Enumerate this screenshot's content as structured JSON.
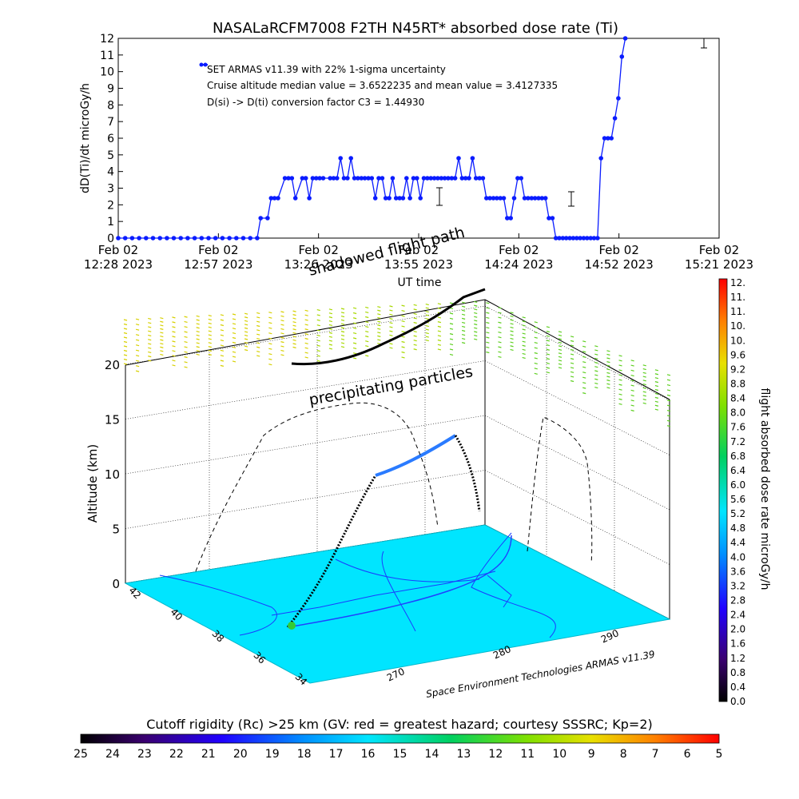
{
  "title": "NASALaRCFM7008  F2TH N45RT* absorbed dose rate (Ti)",
  "colors": {
    "series": "#0a1cff",
    "grid_line": "#000000",
    "ground": "#00e5ff",
    "shadow_path": "#000000"
  },
  "chart_data": [
    {
      "type": "line",
      "title": "NASALaRCFM7008  F2TH N45RT* absorbed dose rate (Ti)",
      "ylabel": "dD(Ti)/dt microGy/h",
      "xlabel": "UT time",
      "ylim": [
        0,
        12
      ],
      "y_ticks": [
        0,
        1,
        2,
        3,
        4,
        5,
        6,
        7,
        8,
        9,
        10,
        11,
        12
      ],
      "x_ticks": [
        {
          "line1": "Feb 02",
          "line2": "12:28 2023"
        },
        {
          "line1": "Feb 02",
          "line2": "12:57 2023"
        },
        {
          "line1": "Feb 02",
          "line2": "13:26 2023"
        },
        {
          "line1": "Feb 02",
          "line2": "13:55 2023"
        },
        {
          "line1": "Feb 02",
          "line2": "14:24 2023"
        },
        {
          "line1": "Feb 02",
          "line2": "14:52 2023"
        },
        {
          "line1": "Feb 02",
          "line2": "15:21 2023"
        }
      ],
      "x_minutes": [
        0,
        2,
        4,
        6,
        8,
        10,
        12,
        14,
        16,
        18,
        20,
        22,
        24,
        26,
        28,
        30,
        32,
        34,
        36,
        38,
        40,
        41,
        43,
        44,
        45,
        46,
        48,
        49,
        50,
        51,
        53,
        54,
        55,
        56,
        57,
        58,
        59,
        61,
        62,
        63,
        64,
        65,
        66,
        67,
        68,
        69,
        70,
        71,
        72,
        73,
        74,
        75,
        76,
        77,
        78,
        79,
        80,
        81,
        82,
        83,
        84,
        85,
        86,
        87,
        88,
        89,
        90,
        91,
        92,
        93,
        94,
        95,
        96,
        97,
        98,
        99,
        100,
        101,
        102,
        103,
        104,
        105,
        106,
        107,
        108,
        109,
        110,
        111,
        112,
        113,
        114,
        115,
        116,
        117,
        118,
        119,
        120,
        121,
        122,
        123,
        124,
        125,
        126,
        127,
        128,
        129,
        130,
        131,
        132,
        133,
        134,
        135,
        136,
        137,
        138,
        139,
        140,
        141,
        142,
        143,
        144,
        145,
        146,
        148,
        150,
        152,
        154,
        155,
        156,
        157,
        158,
        159,
        160,
        161,
        162
      ],
      "series": [
        {
          "values": [
            0,
            0,
            0,
            0,
            0,
            0,
            0,
            0,
            0,
            0,
            0,
            0,
            0,
            0,
            0,
            0,
            0,
            0,
            0,
            0,
            0,
            1.2,
            1.2,
            2.4,
            2.4,
            2.4,
            3.6,
            3.6,
            3.6,
            2.4,
            3.6,
            3.6,
            2.4,
            3.6,
            3.6,
            3.6,
            3.6,
            3.6,
            3.6,
            3.6,
            4.8,
            3.6,
            3.6,
            4.8,
            3.6,
            3.6,
            3.6,
            3.6,
            3.6,
            3.6,
            2.4,
            3.6,
            3.6,
            2.4,
            2.4,
            3.6,
            2.4,
            2.4,
            2.4,
            3.6,
            2.4,
            3.6,
            3.6,
            2.4,
            3.6,
            3.6,
            3.6,
            3.6,
            3.6,
            3.6,
            3.6,
            3.6,
            3.6,
            3.6,
            4.8,
            3.6,
            3.6,
            3.6,
            4.8,
            3.6,
            3.6,
            3.6,
            2.4,
            2.4,
            2.4,
            2.4,
            2.4,
            2.4,
            1.2,
            1.2,
            2.4,
            3.6,
            3.6,
            2.4,
            2.4,
            2.4,
            2.4,
            2.4,
            2.4,
            2.4,
            1.2,
            1.2,
            0,
            0,
            0,
            0,
            0,
            0,
            0,
            0,
            0,
            0,
            0,
            0,
            0,
            4.8,
            6.0,
            6.0,
            6.0,
            7.2,
            8.4,
            10.9,
            12.5
          ]
        }
      ],
      "legend": [
        "SET ARMAS v11.39 with 22% 1-sigma uncertainty",
        "Cruise altitude median value = 3.6522235 and mean value = 3.4127335",
        "D(si) -> D(ti) conversion factor C3 = 1.44930"
      ]
    },
    {
      "type": "scatter",
      "zlabel": "Altitude (km)",
      "z_ticks": [
        "0",
        "5",
        "10",
        "15",
        "20"
      ],
      "lat_ticks": [
        "34",
        "36",
        "38",
        "40",
        "42"
      ],
      "lon_ticks": [
        "270",
        "280",
        "290"
      ],
      "annotations": [
        "shadowed flight path",
        "precipitating particles"
      ],
      "credit": "Space Environment Technologies ARMAS v11.39"
    }
  ],
  "colorbars": {
    "right": {
      "label": "flight absorbed dose rate microGy/h",
      "ticks": [
        "12.",
        "11.",
        "11.",
        "10.",
        "10.",
        "9.6",
        "9.2",
        "8.8",
        "8.4",
        "8.0",
        "7.6",
        "7.2",
        "6.8",
        "6.4",
        "6.0",
        "5.6",
        "5.2",
        "4.8",
        "4.4",
        "4.0",
        "3.6",
        "3.2",
        "2.8",
        "2.4",
        "2.0",
        "1.6",
        "1.2",
        "0.8",
        "0.4",
        "0.0"
      ]
    },
    "bottom": {
      "label": "Cutoff rigidity (Rc) >25 km (GV: red = greatest hazard; courtesy SSSRC; Kp=2)",
      "ticks": [
        "25",
        "24",
        "23",
        "22",
        "21",
        "20",
        "19",
        "18",
        "17",
        "16",
        "15",
        "14",
        "13",
        "12",
        "11",
        "10",
        "9",
        "8",
        "7",
        "6",
        "5"
      ]
    }
  }
}
